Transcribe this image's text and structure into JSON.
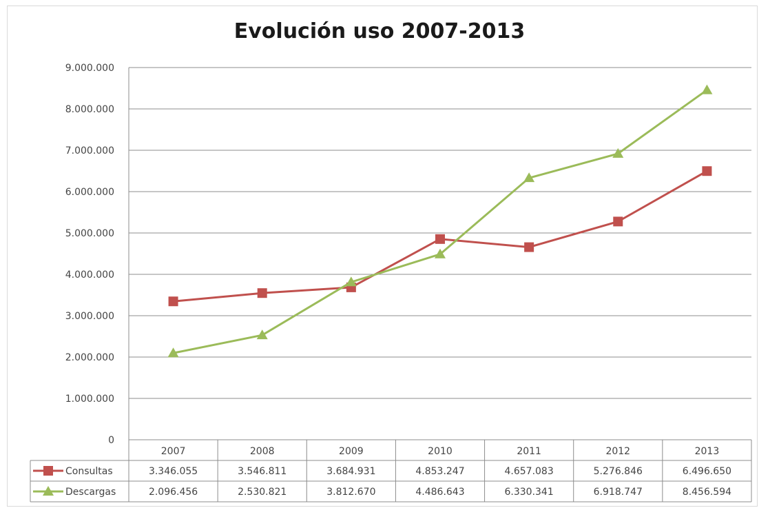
{
  "chart_data": {
    "type": "line",
    "title": "Evolución uso 2007-2013",
    "categories": [
      "2007",
      "2008",
      "2009",
      "2010",
      "2011",
      "2012",
      "2013"
    ],
    "y_ticks": [
      "0",
      "1.000.000",
      "2.000.000",
      "3.000.000",
      "4.000.000",
      "5.000.000",
      "6.000.000",
      "7.000.000",
      "8.000.000",
      "9.000.000"
    ],
    "ylim": [
      0,
      9000000
    ],
    "grid": true,
    "legend": "data-table",
    "series": [
      {
        "name": "Consultas",
        "color": "#c0504d",
        "marker": "square",
        "values": [
          3346055,
          3546811,
          3684931,
          4853247,
          4657083,
          5276846,
          6496650
        ],
        "labels": [
          "3.346.055",
          "3.546.811",
          "3.684.931",
          "4.853.247",
          "4.657.083",
          "5.276.846",
          "6.496.650"
        ]
      },
      {
        "name": "Descargas",
        "color": "#9bbb59",
        "marker": "triangle",
        "values": [
          2096456,
          2530821,
          3812670,
          4486643,
          6330341,
          6918747,
          8456594
        ],
        "labels": [
          "2.096.456",
          "2.530.821",
          "3.812.670",
          "4.486.643",
          "6.330.341",
          "6.918.747",
          "8.456.594"
        ]
      }
    ]
  }
}
